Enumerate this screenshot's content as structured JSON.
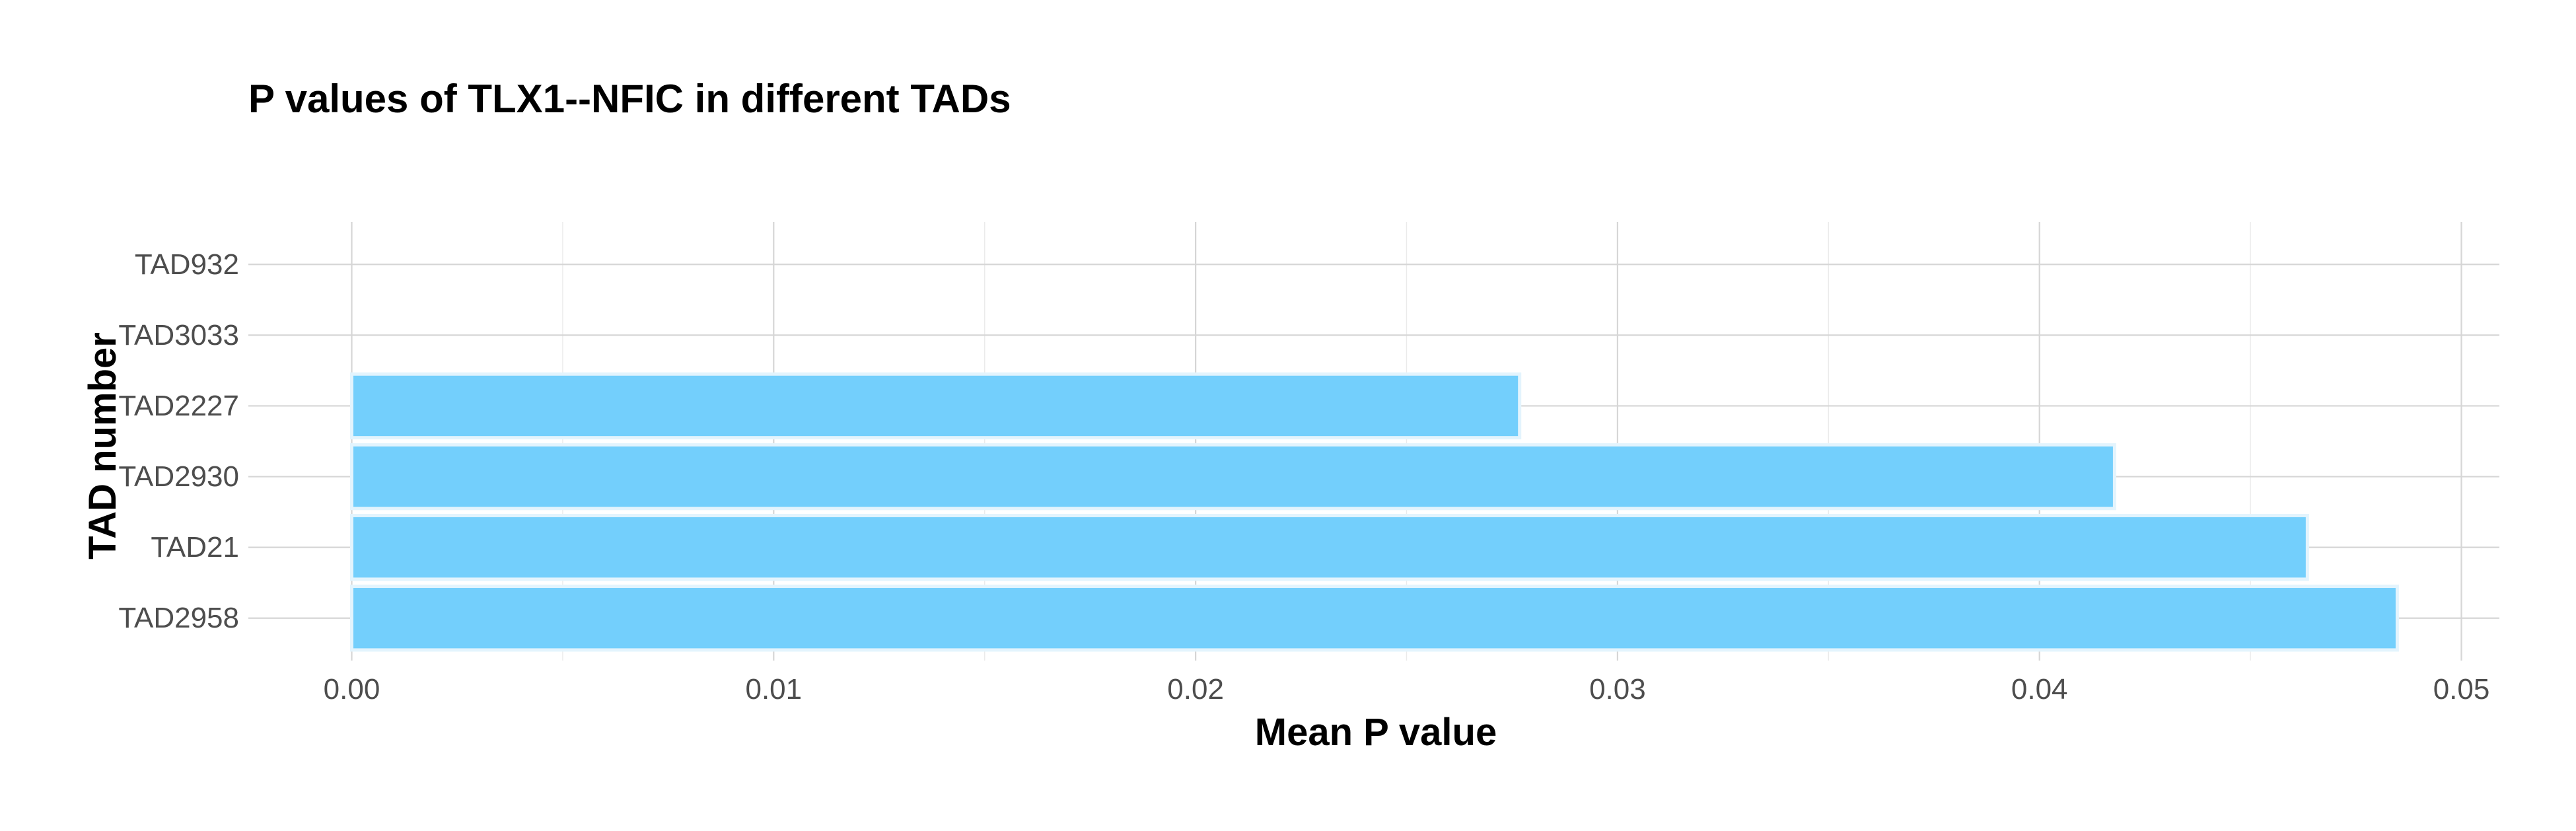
{
  "chart_data": {
    "type": "bar",
    "orientation": "horizontal",
    "title": "P values of TLX1--NFIC in different TADs",
    "xlabel": "Mean P value",
    "ylabel": "TAD number",
    "categories": [
      "TAD932",
      "TAD3033",
      "TAD2227",
      "TAD2930",
      "TAD21",
      "TAD2958"
    ],
    "values": [
      0,
      0,
      0.02768,
      0.04178,
      0.04635,
      0.04848
    ],
    "xlim": [
      -0.00245,
      0.0509
    ],
    "xticks": [
      0.0,
      0.01,
      0.02,
      0.03,
      0.04,
      0.05
    ],
    "xtick_labels": [
      "0.00",
      "0.01",
      "0.02",
      "0.03",
      "0.04",
      "0.05"
    ],
    "grid": true,
    "legend": "none",
    "colors": {
      "bar_fill": "#73CFFC",
      "bar_outline": "#E3F4FD",
      "grid_major": "#d6d6d6",
      "grid_minor": "#ebebeb",
      "tick_text": "#4d4d4d",
      "title_text": "#000000"
    }
  }
}
